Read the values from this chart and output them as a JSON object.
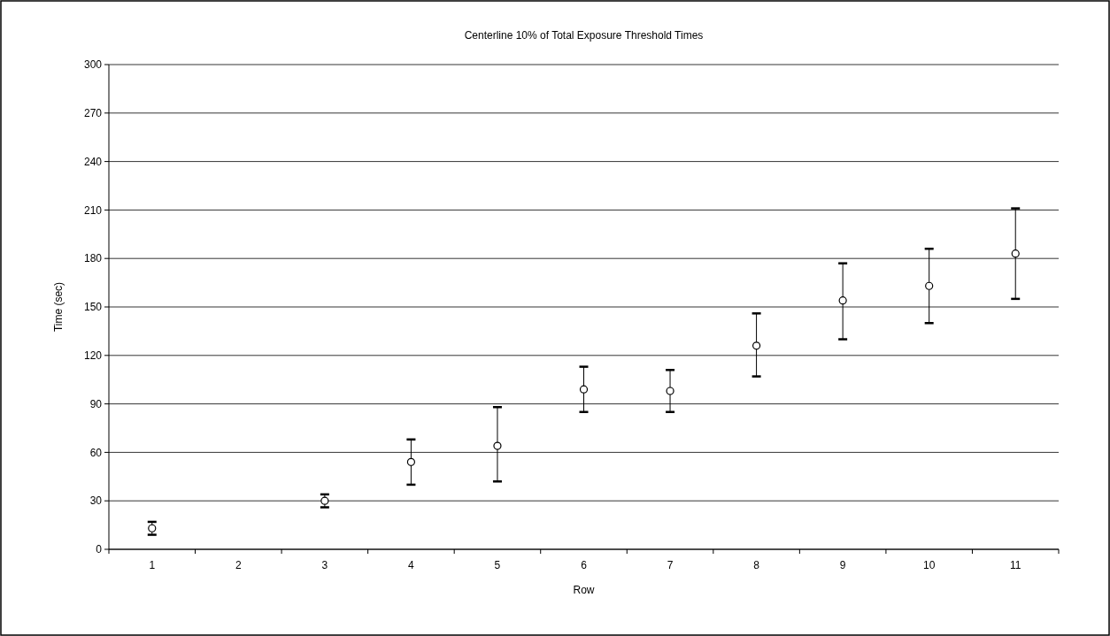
{
  "chart_data": {
    "type": "scatter",
    "title": "Centerline 10% of Total Exposure Threshold Times",
    "xlabel": "Row",
    "ylabel": "Time (sec)",
    "categories": [
      "1",
      "2",
      "3",
      "4",
      "5",
      "6",
      "7",
      "8",
      "9",
      "10",
      "11"
    ],
    "series": [
      {
        "color": "#000000",
        "values": [
          13,
          null,
          30,
          54,
          64,
          99,
          98,
          126,
          154,
          163,
          183
        ],
        "errors": [
          [
            9,
            17
          ],
          null,
          [
            26,
            34
          ],
          [
            40,
            68
          ],
          [
            42,
            88
          ],
          [
            85,
            113
          ],
          [
            85,
            111
          ],
          [
            107,
            146
          ],
          [
            130,
            177
          ],
          [
            140,
            186
          ],
          [
            155,
            211
          ]
        ]
      }
    ],
    "ylim": [
      0,
      300
    ],
    "yticks": [
      0,
      30,
      60,
      90,
      120,
      150,
      180,
      210,
      240,
      270,
      300
    ],
    "grid": "y",
    "marker": "circle"
  }
}
